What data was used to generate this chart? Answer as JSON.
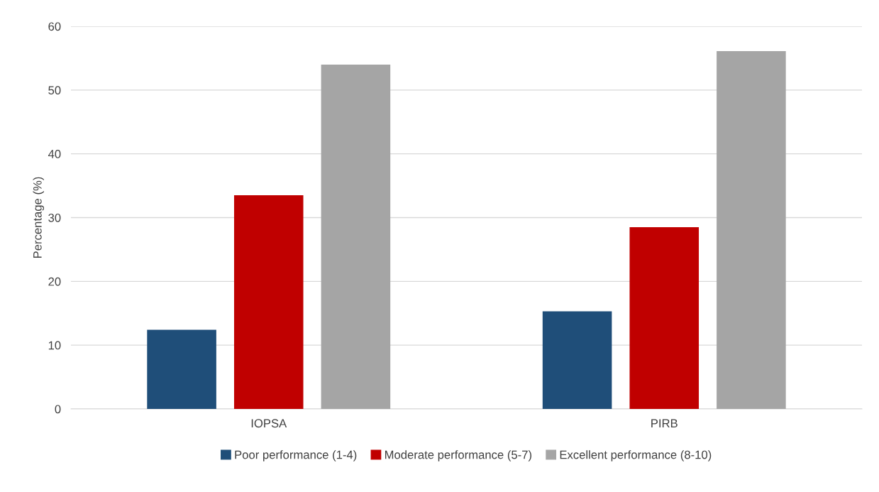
{
  "chart_data": {
    "type": "bar",
    "ylabel": "Percentage (%)",
    "categories": [
      "IOPSA",
      "PIRB"
    ],
    "series": [
      {
        "name": "Poor performance (1-4)",
        "color": "#1f4e79",
        "values": [
          12.4,
          15.3
        ]
      },
      {
        "name": "Moderate performance (5-7)",
        "color": "#c00000",
        "values": [
          33.5,
          28.5
        ]
      },
      {
        "name": "Excellent performance (8-10)",
        "color": "#a5a5a5",
        "values": [
          54.0,
          56.1
        ]
      }
    ],
    "ylim": [
      0,
      60
    ],
    "yticks": [
      0,
      10,
      20,
      30,
      40,
      50,
      60
    ],
    "grid": "y",
    "legend": "bottom"
  }
}
